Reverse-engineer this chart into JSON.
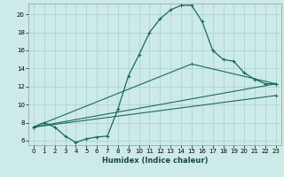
{
  "xlabel": "Humidex (Indice chaleur)",
  "bg_color": "#cceae8",
  "grid_color": "#b0d4d0",
  "line_color": "#1a6b5a",
  "xlim": [
    -0.5,
    23.5
  ],
  "ylim": [
    5.5,
    21.2
  ],
  "xticks": [
    0,
    1,
    2,
    3,
    4,
    5,
    6,
    7,
    8,
    9,
    10,
    11,
    12,
    13,
    14,
    15,
    16,
    17,
    18,
    19,
    20,
    21,
    22,
    23
  ],
  "yticks": [
    6,
    8,
    10,
    12,
    14,
    16,
    18,
    20
  ],
  "line1_x": [
    0,
    1,
    2,
    3,
    4,
    5,
    6,
    7,
    8,
    9,
    10,
    11,
    12,
    13,
    14,
    15,
    16,
    17,
    18,
    19,
    20,
    21,
    22,
    23
  ],
  "line1_y": [
    7.5,
    8.0,
    7.5,
    6.5,
    5.8,
    6.2,
    6.4,
    6.5,
    9.5,
    13.2,
    15.5,
    18.0,
    19.5,
    20.5,
    21.0,
    21.0,
    19.2,
    16.0,
    15.0,
    14.8,
    13.5,
    12.8,
    12.3,
    12.3
  ],
  "line2_x": [
    0,
    23
  ],
  "line2_y": [
    7.5,
    12.3
  ],
  "line3_x": [
    0,
    15,
    23
  ],
  "line3_y": [
    7.5,
    14.5,
    12.3
  ],
  "line4_x": [
    0,
    23
  ],
  "line4_y": [
    7.5,
    11.0
  ]
}
